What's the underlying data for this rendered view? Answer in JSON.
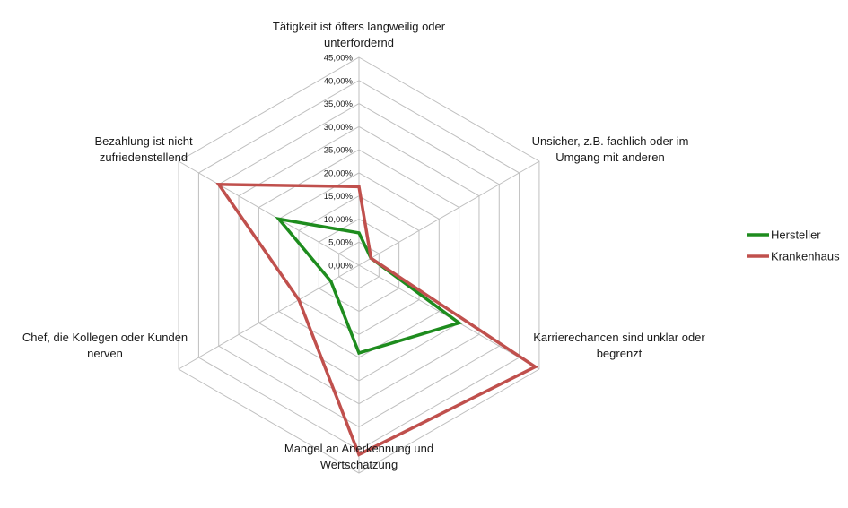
{
  "chart_data": {
    "type": "radar",
    "axes": [
      "Tätigkeit ist öfters langweilig oder unterfordernd",
      "Unsicher, z.B. fachlich oder im Umgang mit anderen",
      "Karrierechancen sind unklar oder begrenzt",
      "Mangel an Anerkennung und Wertschätzung",
      "Chef, die Kollegen oder Kunden nerven",
      "Bezahlung ist nicht zufriedenstellend"
    ],
    "axis_label_lines": [
      [
        "Tätigkeit ist öfters langweilig oder",
        "unterfordernd"
      ],
      [
        "Unsicher, z.B. fachlich oder im",
        "Umgang mit anderen"
      ],
      [
        "Karrierechancen sind unklar oder",
        "begrenzt"
      ],
      [
        "Mangel an Anerkennung und",
        "Wertschätzung"
      ],
      [
        "Chef, die Kollegen oder Kunden",
        "nerven"
      ],
      [
        "Bezahlung ist nicht",
        "zufriedenstellend"
      ]
    ],
    "range": [
      0,
      0.45
    ],
    "ticks": [
      "0,00%",
      "5,00%",
      "10,00%",
      "15,00%",
      "20,00%",
      "25,00%",
      "30,00%",
      "35,00%",
      "40,00%",
      "45,00%"
    ],
    "series": [
      {
        "name": "Hersteller",
        "color": "#1e8c1e",
        "values": [
          0.07,
          0.03,
          0.25,
          0.19,
          0.07,
          0.2
        ]
      },
      {
        "name": "Krankenhaus",
        "color": "#c0504d",
        "values": [
          0.17,
          0.03,
          0.44,
          0.41,
          0.15,
          0.35
        ]
      }
    ],
    "grid": true,
    "legend_position": "right"
  }
}
